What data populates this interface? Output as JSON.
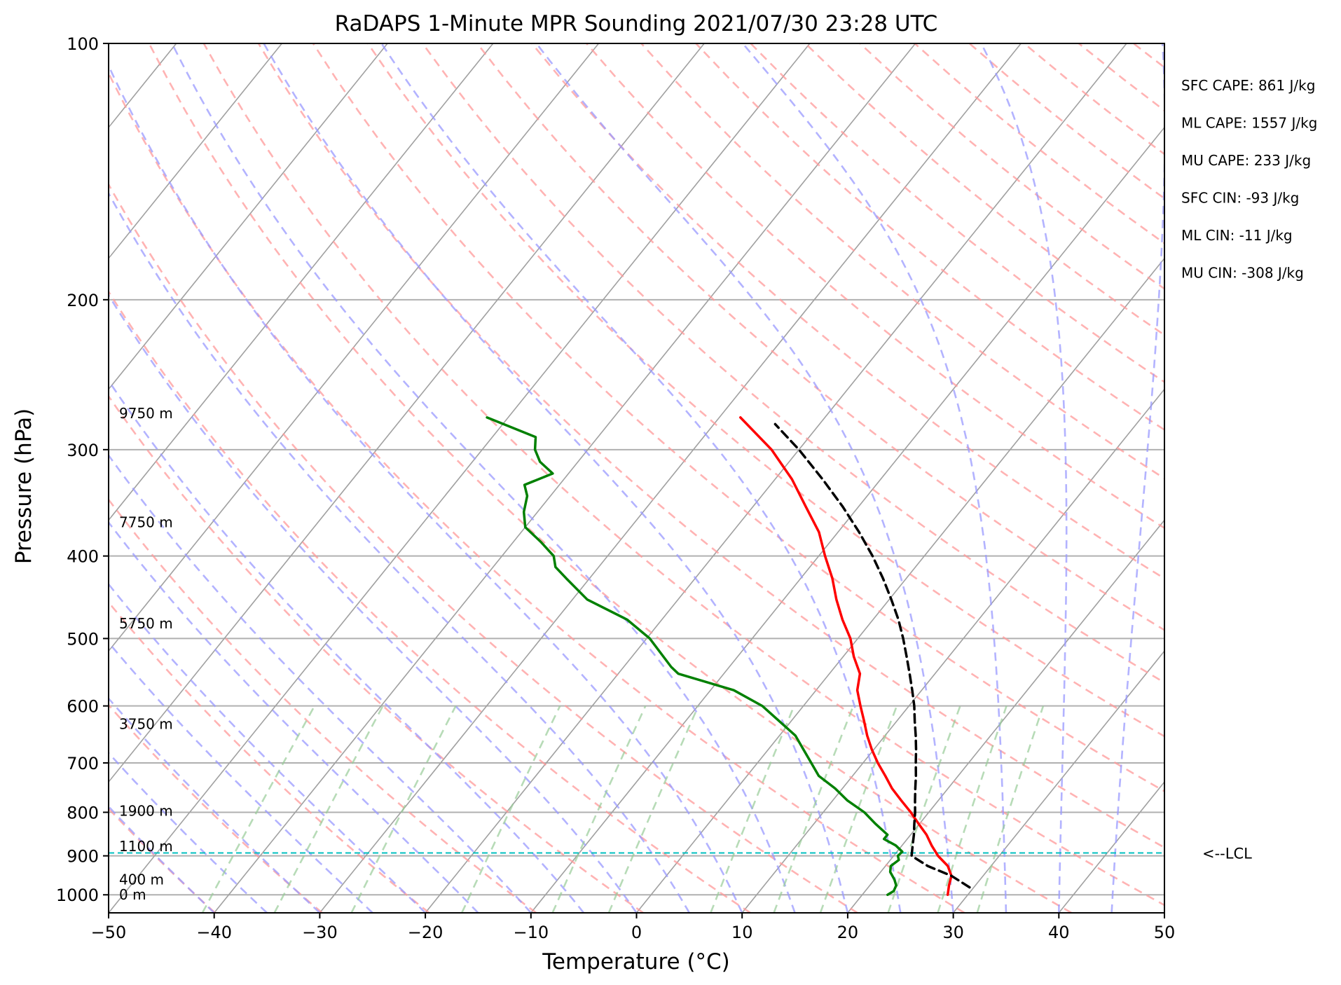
{
  "chart_data": {
    "type": "line",
    "subtype": "skew-T log-P sounding",
    "title": "RaDAPS 1-Minute MPR Sounding 2021/07/30 23:28 UTC",
    "xlabel": "Temperature (°C)",
    "ylabel": "Pressure (hPa)",
    "xlim": [
      -50,
      50
    ],
    "ylim": [
      1050,
      100
    ],
    "y_scale": "log",
    "grid": true,
    "x_ticks": [
      "−50",
      "−40",
      "−30",
      "−20",
      "−10",
      "0",
      "10",
      "20",
      "30",
      "40",
      "50"
    ],
    "x_tick_values": [
      -50,
      -40,
      -30,
      -20,
      -10,
      0,
      10,
      20,
      30,
      40,
      50
    ],
    "y_ticks": [
      "100",
      "200",
      "300",
      "400",
      "500",
      "600",
      "700",
      "800",
      "900",
      "1000"
    ],
    "y_tick_values": [
      100,
      200,
      300,
      400,
      500,
      600,
      700,
      800,
      900,
      1000
    ],
    "height_labels": [
      {
        "text": "9750 m",
        "p": 272
      },
      {
        "text": "7750 m",
        "p": 365
      },
      {
        "text": "5750 m",
        "p": 480
      },
      {
        "text": "3750 m",
        "p": 630
      },
      {
        "text": "1900 m",
        "p": 797
      },
      {
        "text": "1100 m",
        "p": 877
      },
      {
        "text": "400 m",
        "p": 960
      },
      {
        "text": "0 m",
        "p": 1000
      }
    ],
    "series": [
      {
        "color": "#ff0000",
        "points": [
          {
            "p": 1000,
            "t": 28.1
          },
          {
            "p": 975,
            "t": 27.5
          },
          {
            "p": 950,
            "t": 27.0
          },
          {
            "p": 925,
            "t": 25.9
          },
          {
            "p": 900,
            "t": 24.2
          },
          {
            "p": 875,
            "t": 22.8
          },
          {
            "p": 850,
            "t": 21.5
          },
          {
            "p": 825,
            "t": 19.9
          },
          {
            "p": 800,
            "t": 18.3
          },
          {
            "p": 775,
            "t": 16.5
          },
          {
            "p": 750,
            "t": 14.7
          },
          {
            "p": 725,
            "t": 13.1
          },
          {
            "p": 700,
            "t": 11.4
          },
          {
            "p": 675,
            "t": 9.8
          },
          {
            "p": 650,
            "t": 8.3
          },
          {
            "p": 625,
            "t": 6.9
          },
          {
            "p": 600,
            "t": 5.4
          },
          {
            "p": 575,
            "t": 3.9
          },
          {
            "p": 550,
            "t": 2.9
          },
          {
            "p": 525,
            "t": 1.0
          },
          {
            "p": 500,
            "t": -0.7
          },
          {
            "p": 475,
            "t": -2.9
          },
          {
            "p": 450,
            "t": -5.0
          },
          {
            "p": 425,
            "t": -7.0
          },
          {
            "p": 400,
            "t": -9.4
          },
          {
            "p": 375,
            "t": -11.8
          },
          {
            "p": 350,
            "t": -15.0
          },
          {
            "p": 325,
            "t": -18.4
          },
          {
            "p": 300,
            "t": -22.6
          },
          {
            "p": 275,
            "t": -28.0
          }
        ]
      },
      {
        "color": "#008000",
        "points": [
          {
            "p": 1000,
            "t": 22.4
          },
          {
            "p": 990,
            "t": 22.7
          },
          {
            "p": 975,
            "t": 22.5
          },
          {
            "p": 960,
            "t": 21.9
          },
          {
            "p": 940,
            "t": 20.9
          },
          {
            "p": 925,
            "t": 20.5
          },
          {
            "p": 910,
            "t": 20.8
          },
          {
            "p": 900,
            "t": 20.4
          },
          {
            "p": 890,
            "t": 20.5
          },
          {
            "p": 875,
            "t": 19.4
          },
          {
            "p": 860,
            "t": 17.8
          },
          {
            "p": 850,
            "t": 17.8
          },
          {
            "p": 825,
            "t": 15.8
          },
          {
            "p": 800,
            "t": 13.9
          },
          {
            "p": 775,
            "t": 11.4
          },
          {
            "p": 750,
            "t": 9.3
          },
          {
            "p": 725,
            "t": 6.8
          },
          {
            "p": 700,
            "t": 5.1
          },
          {
            "p": 650,
            "t": 1.5
          },
          {
            "p": 600,
            "t": -3.9
          },
          {
            "p": 575,
            "t": -7.8
          },
          {
            "p": 550,
            "t": -14.3
          },
          {
            "p": 540,
            "t": -15.5
          },
          {
            "p": 500,
            "t": -19.7
          },
          {
            "p": 475,
            "t": -23.3
          },
          {
            "p": 450,
            "t": -28.6
          },
          {
            "p": 425,
            "t": -32.2
          },
          {
            "p": 412,
            "t": -34.1
          },
          {
            "p": 400,
            "t": -35.1
          },
          {
            "p": 385,
            "t": -37.4
          },
          {
            "p": 370,
            "t": -40.0
          },
          {
            "p": 355,
            "t": -41.3
          },
          {
            "p": 340,
            "t": -42.2
          },
          {
            "p": 330,
            "t": -43.3
          },
          {
            "p": 320,
            "t": -41.5
          },
          {
            "p": 310,
            "t": -43.6
          },
          {
            "p": 300,
            "t": -45.0
          },
          {
            "p": 290,
            "t": -45.9
          },
          {
            "p": 275,
            "t": -52.0
          }
        ]
      },
      {
        "color": "#000000",
        "dashed": true,
        "points": [
          {
            "p": 980,
            "t": 29.6
          },
          {
            "p": 950,
            "t": 27.0
          },
          {
            "p": 925,
            "t": 24.0
          },
          {
            "p": 900,
            "t": 21.7
          },
          {
            "p": 875,
            "t": 21.0
          },
          {
            "p": 850,
            "t": 20.3
          },
          {
            "p": 825,
            "t": 19.5
          },
          {
            "p": 800,
            "t": 18.7
          },
          {
            "p": 775,
            "t": 17.8
          },
          {
            "p": 750,
            "t": 16.9
          },
          {
            "p": 725,
            "t": 16.0
          },
          {
            "p": 700,
            "t": 15.0
          },
          {
            "p": 675,
            "t": 14.0
          },
          {
            "p": 650,
            "t": 12.9
          },
          {
            "p": 625,
            "t": 11.7
          },
          {
            "p": 600,
            "t": 10.5
          },
          {
            "p": 575,
            "t": 9.1
          },
          {
            "p": 550,
            "t": 7.6
          },
          {
            "p": 525,
            "t": 6.0
          },
          {
            "p": 500,
            "t": 4.3
          },
          {
            "p": 475,
            "t": 2.4
          },
          {
            "p": 450,
            "t": 0.2
          },
          {
            "p": 425,
            "t": -2.2
          },
          {
            "p": 400,
            "t": -4.9
          },
          {
            "p": 375,
            "t": -8.0
          },
          {
            "p": 350,
            "t": -11.5
          },
          {
            "p": 325,
            "t": -15.5
          },
          {
            "p": 300,
            "t": -20.0
          },
          {
            "p": 280,
            "t": -24.2
          }
        ]
      }
    ],
    "lcl": {
      "p": 893,
      "label": "<--LCL",
      "color": "#00bfbf"
    },
    "stats": [
      "SFC CAPE: 861 J/kg",
      "ML CAPE: 1557 J/kg",
      "MU CAPE: 233 J/kg",
      "SFC CIN: -93 J/kg",
      "ML CIN: -11 J/kg",
      "MU CIN: -308 J/kg"
    ],
    "reference_lines": {
      "isotherms": {
        "color": "#a0a0a0"
      },
      "dry_adiabats": {
        "color": "#ff9999",
        "dashed": true
      },
      "moist_adiabats": {
        "color": "#9999ff",
        "dashed": true
      },
      "mixing_ratio": {
        "color": "#99cc99",
        "dashed": true
      }
    }
  }
}
